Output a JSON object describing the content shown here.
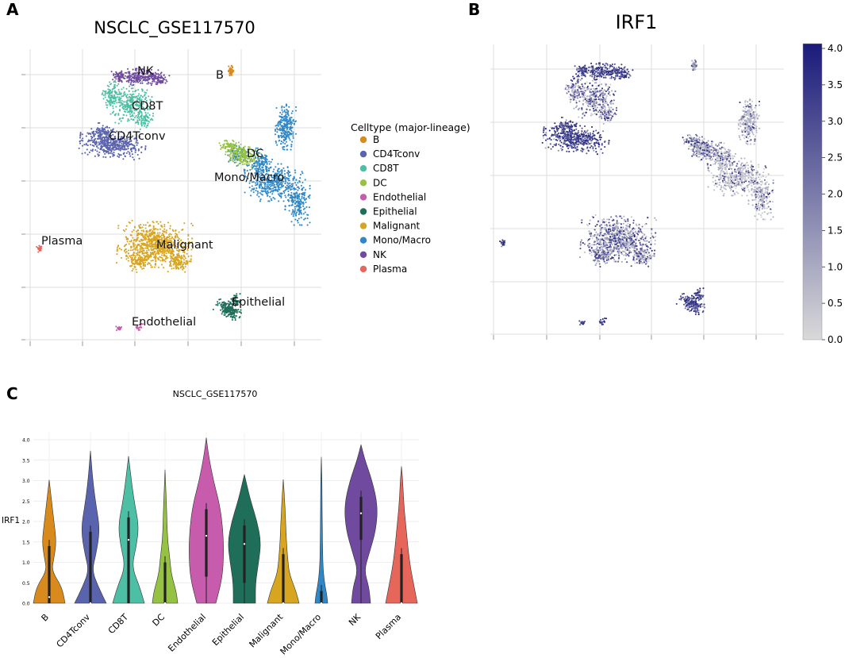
{
  "panel_labels": [
    "A",
    "B",
    "C"
  ],
  "colors": {
    "B": "#d98a1d",
    "CD4Tconv": "#5a63ad",
    "CD8T": "#4dbfa4",
    "DC": "#95c242",
    "Endothelial": "#c75bac",
    "Epithelial": "#1f6e59",
    "Malignant": "#d8a520",
    "Mono/Macro": "#2f87c6",
    "NK": "#6f4a9e",
    "Plasma": "#e6665c"
  },
  "chart_data": [
    {
      "type": "scatter",
      "title": "NSCLC_GSE117570",
      "legend_title": "Celltype (major-lineage)",
      "legend_position": "right",
      "legend": [
        "B",
        "CD4Tconv",
        "CD8T",
        "DC",
        "Endothelial",
        "Epithelial",
        "Malignant",
        "Mono/Macro",
        "NK",
        "Plasma"
      ],
      "cluster_labels": [
        "NK",
        "B",
        "CD8T",
        "CD4Tconv",
        "DC",
        "Mono/Macro",
        "Plasma",
        "Malignant",
        "Epithelial",
        "Endothelial"
      ],
      "grid": true
    },
    {
      "type": "scatter",
      "title": "IRF1",
      "colorbar": {
        "min": 0.0,
        "max": 4.0,
        "ticks": [
          "0.0",
          "0.5",
          "1.0",
          "1.5",
          "2.0",
          "2.5",
          "3.0",
          "3.5",
          "4.0"
        ],
        "low_color": "#d9d9d9",
        "high_color": "#1a1a7a"
      },
      "grid": true
    },
    {
      "type": "violin",
      "title": "NSCLC_GSE117570",
      "ylabel": "IRF1",
      "ylim": [
        0,
        4.0
      ],
      "yticks": [
        "0.0",
        "0.5",
        "1.0",
        "1.5",
        "2.0",
        "2.5",
        "3.0",
        "3.5",
        "4.0"
      ],
      "categories": [
        "B",
        "CD4Tconv",
        "CD8T",
        "DC",
        "Endothelial",
        "Epithelial",
        "Malignant",
        "Mono/Macro",
        "NK",
        "Plasma"
      ],
      "max_values": [
        3.02,
        3.73,
        3.6,
        3.27,
        4.05,
        3.15,
        3.03,
        3.58,
        3.88,
        3.35
      ],
      "q1": [
        0.0,
        0.0,
        0.0,
        0.0,
        0.65,
        0.5,
        0.0,
        0.0,
        1.55,
        0.0
      ],
      "median": [
        0.15,
        0.0,
        1.55,
        0.0,
        1.65,
        1.45,
        0.0,
        0.0,
        2.2,
        0.0
      ],
      "q3": [
        1.4,
        1.75,
        2.1,
        1.0,
        2.3,
        1.9,
        1.2,
        0.3,
        2.6,
        1.2
      ],
      "grid": true
    }
  ]
}
